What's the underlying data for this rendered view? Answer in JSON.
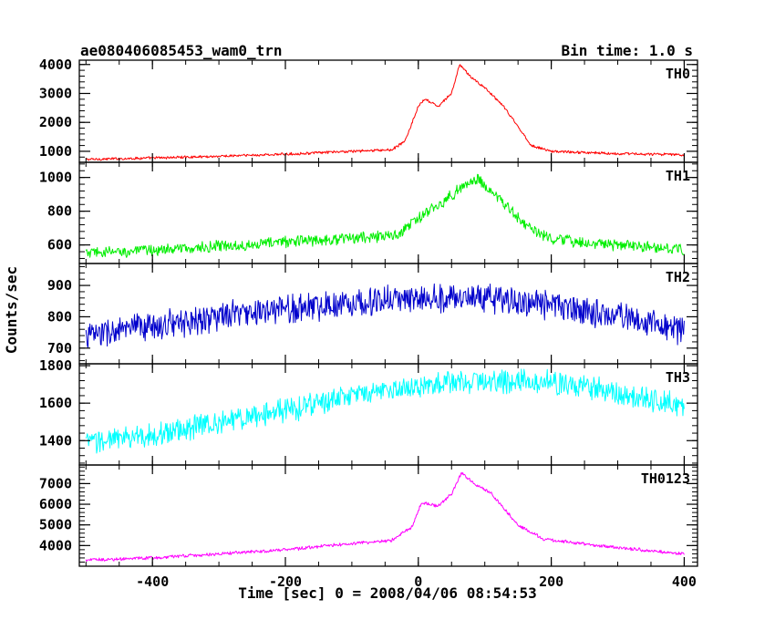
{
  "chart_data": {
    "type": "line",
    "title": "ae080406085453_wam0_trn",
    "subtitle": "Bin time: 1.0 s",
    "xlabel": "Time [sec] 0 = 2008/04/06 08:54:53",
    "ylabel": "Counts/sec",
    "xlim": [
      -510,
      420
    ],
    "x_ticks": [
      -400,
      -200,
      0,
      200,
      400
    ],
    "grid": false,
    "legend": "none",
    "panels": [
      {
        "name": "TH0",
        "color": "#ff0000",
        "ylim": [
          620,
          4150
        ],
        "y_ticks": [
          1000,
          2000,
          3000,
          4000
        ],
        "noise": 40,
        "series": [
          {
            "x": -500,
            "y": 720
          },
          {
            "x": -400,
            "y": 770
          },
          {
            "x": -300,
            "y": 830
          },
          {
            "x": -200,
            "y": 900
          },
          {
            "x": -100,
            "y": 1000
          },
          {
            "x": -40,
            "y": 1050
          },
          {
            "x": -20,
            "y": 1350
          },
          {
            "x": 0,
            "y": 2550
          },
          {
            "x": 10,
            "y": 2800
          },
          {
            "x": 30,
            "y": 2550
          },
          {
            "x": 50,
            "y": 3000
          },
          {
            "x": 62,
            "y": 4000
          },
          {
            "x": 80,
            "y": 3550
          },
          {
            "x": 100,
            "y": 3200
          },
          {
            "x": 130,
            "y": 2500
          },
          {
            "x": 170,
            "y": 1200
          },
          {
            "x": 200,
            "y": 1000
          },
          {
            "x": 300,
            "y": 920
          },
          {
            "x": 400,
            "y": 880
          }
        ]
      },
      {
        "name": "TH1",
        "color": "#00ee00",
        "ylim": [
          490,
          1090
        ],
        "y_ticks": [
          600,
          800,
          1000
        ],
        "noise": 30,
        "series": [
          {
            "x": -500,
            "y": 550
          },
          {
            "x": -400,
            "y": 570
          },
          {
            "x": -300,
            "y": 590
          },
          {
            "x": -200,
            "y": 620
          },
          {
            "x": -100,
            "y": 640
          },
          {
            "x": -30,
            "y": 660
          },
          {
            "x": 0,
            "y": 760
          },
          {
            "x": 40,
            "y": 860
          },
          {
            "x": 70,
            "y": 960
          },
          {
            "x": 90,
            "y": 990
          },
          {
            "x": 120,
            "y": 880
          },
          {
            "x": 160,
            "y": 720
          },
          {
            "x": 200,
            "y": 630
          },
          {
            "x": 300,
            "y": 600
          },
          {
            "x": 400,
            "y": 570
          }
        ]
      },
      {
        "name": "TH2",
        "color": "#0000cc",
        "ylim": [
          650,
          970
        ],
        "y_ticks": [
          700,
          800,
          900
        ],
        "noise": 40,
        "series": [
          {
            "x": -500,
            "y": 740
          },
          {
            "x": -400,
            "y": 770
          },
          {
            "x": -300,
            "y": 800
          },
          {
            "x": -200,
            "y": 825
          },
          {
            "x": -100,
            "y": 845
          },
          {
            "x": 0,
            "y": 860
          },
          {
            "x": 100,
            "y": 860
          },
          {
            "x": 200,
            "y": 835
          },
          {
            "x": 300,
            "y": 805
          },
          {
            "x": 400,
            "y": 755
          }
        ]
      },
      {
        "name": "TH3",
        "color": "#00ffff",
        "ylim": [
          1270,
          1810
        ],
        "y_ticks": [
          1400,
          1600,
          1800
        ],
        "noise": 55,
        "series": [
          {
            "x": -500,
            "y": 1390
          },
          {
            "x": -400,
            "y": 1430
          },
          {
            "x": -300,
            "y": 1500
          },
          {
            "x": -200,
            "y": 1560
          },
          {
            "x": -100,
            "y": 1640
          },
          {
            "x": 0,
            "y": 1690
          },
          {
            "x": 100,
            "y": 1720
          },
          {
            "x": 200,
            "y": 1710
          },
          {
            "x": 300,
            "y": 1660
          },
          {
            "x": 400,
            "y": 1580
          }
        ]
      },
      {
        "name": "TH0123",
        "color": "#ff00ff",
        "ylim": [
          3000,
          7900
        ],
        "y_ticks": [
          4000,
          5000,
          6000,
          7000
        ],
        "noise": 70,
        "series": [
          {
            "x": -500,
            "y": 3300
          },
          {
            "x": -400,
            "y": 3400
          },
          {
            "x": -300,
            "y": 3600
          },
          {
            "x": -200,
            "y": 3800
          },
          {
            "x": -100,
            "y": 4100
          },
          {
            "x": -40,
            "y": 4250
          },
          {
            "x": -10,
            "y": 4900
          },
          {
            "x": 5,
            "y": 6100
          },
          {
            "x": 30,
            "y": 5900
          },
          {
            "x": 50,
            "y": 6500
          },
          {
            "x": 65,
            "y": 7500
          },
          {
            "x": 85,
            "y": 7000
          },
          {
            "x": 110,
            "y": 6500
          },
          {
            "x": 150,
            "y": 5000
          },
          {
            "x": 190,
            "y": 4300
          },
          {
            "x": 300,
            "y": 3900
          },
          {
            "x": 400,
            "y": 3600
          }
        ]
      }
    ]
  }
}
